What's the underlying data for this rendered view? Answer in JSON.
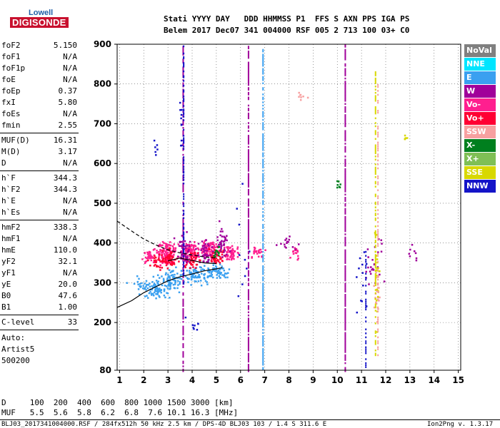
{
  "logo": {
    "top": "Lowell",
    "bottom": "DIGISONDE"
  },
  "header": {
    "line1": "Stati YYYY DAY   DDD HHMMSS P1  FFS S AXN PPS IGA PS",
    "line2": "Belem 2017 Dec07 341 004000 RSF 005 2 713 100 03+ C0"
  },
  "params_top": [
    {
      "name": "foF2",
      "value": "5.150"
    },
    {
      "name": "foF1",
      "value": "N/A"
    },
    {
      "name": "foF1p",
      "value": "N/A"
    },
    {
      "name": "foE",
      "value": "N/A"
    },
    {
      "name": "foEp",
      "value": "0.37"
    },
    {
      "name": "fxI",
      "value": "5.80"
    },
    {
      "name": "foEs",
      "value": "N/A"
    },
    {
      "name": "fmin",
      "value": "2.55"
    }
  ],
  "params_mid": [
    {
      "name": "MUF(D)",
      "value": "16.31"
    },
    {
      "name": "M(D)",
      "value": "3.17"
    },
    {
      "name": "D",
      "value": "N/A"
    }
  ],
  "params_heights": [
    {
      "name": "h`F",
      "value": "344.3"
    },
    {
      "name": "h`F2",
      "value": "344.3"
    },
    {
      "name": "h`E",
      "value": "N/A"
    },
    {
      "name": "h`Es",
      "value": "N/A"
    }
  ],
  "params_profile": [
    {
      "name": "hmF2",
      "value": "338.3"
    },
    {
      "name": "hmF1",
      "value": "N/A"
    },
    {
      "name": "hmE",
      "value": "110.0"
    },
    {
      "name": "yF2",
      "value": "32.1"
    },
    {
      "name": "yF1",
      "value": "N/A"
    },
    {
      "name": "yE",
      "value": "20.0"
    },
    {
      "name": "B0",
      "value": "47.6"
    },
    {
      "name": "B1",
      "value": "1.00"
    }
  ],
  "clevel": {
    "name": "C-level",
    "value": "33"
  },
  "auto": [
    "Auto:",
    "Artist5",
    "500200"
  ],
  "legend": [
    {
      "label": "NoVal",
      "color": "#808080"
    },
    {
      "label": "NNE",
      "color": "#00e5ff"
    },
    {
      "label": "E",
      "color": "#3aa0f0"
    },
    {
      "label": "W",
      "color": "#a0009a"
    },
    {
      "label": "Vo-",
      "color": "#ff1f8f"
    },
    {
      "label": "Vo+",
      "color": "#ff0033"
    },
    {
      "label": "SSW",
      "color": "#f7a0a0"
    },
    {
      "label": "X-",
      "color": "#007f1e"
    },
    {
      "label": "X+",
      "color": "#7fbf55"
    },
    {
      "label": "SSE",
      "color": "#d8d800"
    },
    {
      "label": "NNW",
      "color": "#1414c8"
    }
  ],
  "muf_table": {
    "d_row": "D     100  200  400  600  800 1000 1500 3000 [km]",
    "muf_row": "MUF   5.5  5.6  5.8  6.2  6.8  7.6 10.1 16.3 [MHz]"
  },
  "footer": {
    "left": "BLJ03_2017341004000.RSF / 284fx512h 50 kHz 2.5 km / DPS-4D BLJ03 103 / 1.4 S 311.6 E",
    "right": "Ion2Png v. 1.3.17"
  },
  "chart_data": {
    "type": "scatter",
    "x_ticks": [
      "1",
      "2",
      "3",
      "4",
      "5",
      "6",
      "7",
      "8",
      "9",
      "10",
      "11",
      "12",
      "13",
      "14",
      "15"
    ],
    "y_ticks": [
      "80",
      "200",
      "300",
      "400",
      "500",
      "600",
      "700",
      "800",
      "900"
    ],
    "xlim": [
      0.9,
      15.1
    ],
    "ylim": [
      80,
      900
    ],
    "x_tick_values": [
      1,
      2,
      3,
      4,
      5,
      6,
      7,
      8,
      9,
      10,
      11,
      12,
      13,
      14,
      15
    ],
    "y_tick_values": [
      80,
      200,
      300,
      400,
      500,
      600,
      700,
      800,
      900
    ],
    "grid": true,
    "series": [
      {
        "color": "#3aa0f0",
        "clusters": [
          [
            2.2,
            290,
            0.7,
            25,
            60
          ],
          [
            3.1,
            310,
            0.5,
            25,
            70
          ],
          [
            4.2,
            320,
            0.5,
            20,
            70
          ],
          [
            5.0,
            330,
            0.5,
            20,
            60
          ],
          [
            2.6,
            280,
            0.4,
            15,
            30
          ]
        ]
      },
      {
        "color": "#ff1f8f",
        "clusters": [
          [
            2.9,
            375,
            0.4,
            30,
            120
          ],
          [
            3.9,
            380,
            0.3,
            25,
            90
          ],
          [
            4.7,
            385,
            0.35,
            25,
            90
          ],
          [
            5.6,
            375,
            0.3,
            20,
            50
          ],
          [
            2.2,
            370,
            0.3,
            20,
            40
          ],
          [
            6.7,
            380,
            0.3,
            15,
            25
          ],
          [
            8.2,
            380,
            0.2,
            15,
            15
          ]
        ]
      },
      {
        "color": "#ff0033",
        "clusters": [
          [
            3.0,
            360,
            0.4,
            20,
            60
          ],
          [
            4.0,
            360,
            0.3,
            20,
            50
          ],
          [
            5.0,
            370,
            0.3,
            20,
            50
          ],
          [
            2.5,
            355,
            0.3,
            15,
            20
          ]
        ]
      },
      {
        "color": "#a0009a",
        "clusters": [
          [
            3.6,
            380,
            0.3,
            40,
            50
          ],
          [
            4.5,
            380,
            0.3,
            30,
            40
          ],
          [
            5.2,
            400,
            0.3,
            40,
            40
          ],
          [
            8.0,
            400,
            0.4,
            20,
            15
          ],
          [
            11.5,
            360,
            0.4,
            60,
            25
          ],
          [
            13.0,
            380,
            0.3,
            20,
            8
          ]
        ]
      },
      {
        "color": "#007f1e",
        "clusters": [
          [
            5.0,
            380,
            0.2,
            15,
            12
          ],
          [
            10.0,
            550,
            0.1,
            20,
            8
          ]
        ]
      },
      {
        "color": "#1414c8",
        "clusters": [
          [
            4.0,
            200,
            0.4,
            30,
            8
          ],
          [
            6.0,
            400,
            0.3,
            200,
            10
          ],
          [
            3.5,
            700,
            0.1,
            80,
            10
          ],
          [
            11.0,
            300,
            0.3,
            100,
            12
          ],
          [
            2.5,
            640,
            0.1,
            20,
            6
          ]
        ]
      },
      {
        "color": "#f7a0a0",
        "clusters": [
          [
            11.6,
            280,
            0.12,
            80,
            25
          ],
          [
            8.5,
            770,
            0.3,
            10,
            8
          ]
        ]
      },
      {
        "color": "#d8d800",
        "clusters": [
          [
            11.6,
            330,
            0.08,
            120,
            20
          ],
          [
            12.8,
            670,
            0.1,
            15,
            6
          ]
        ]
      }
    ],
    "vertical_streaks": [
      {
        "x": 3.6,
        "y0": 80,
        "y1": 900,
        "color": "#a0009a",
        "step": 4,
        "gap": 0.35
      },
      {
        "x": 3.62,
        "y0": 300,
        "y1": 900,
        "color": "#1414c8",
        "step": 3,
        "gap": 0.5
      },
      {
        "x": 6.3,
        "y0": 80,
        "y1": 900,
        "color": "#a0009a",
        "step": 4,
        "gap": 0.2
      },
      {
        "x": 6.9,
        "y0": 80,
        "y1": 890,
        "color": "#3aa0f0",
        "step": 4,
        "gap": 0.3
      },
      {
        "x": 10.3,
        "y0": 80,
        "y1": 900,
        "color": "#a0009a",
        "step": 4,
        "gap": 0.2
      },
      {
        "x": 11.55,
        "y0": 120,
        "y1": 840,
        "color": "#d8d800",
        "step": 4,
        "gap": 0.4
      },
      {
        "x": 11.65,
        "y0": 120,
        "y1": 800,
        "color": "#f7a0a0",
        "step": 5,
        "gap": 0.5
      },
      {
        "x": 11.15,
        "y0": 80,
        "y1": 380,
        "color": "#1414c8",
        "step": 5,
        "gap": 0.5
      }
    ],
    "curves": [
      {
        "style": "solid",
        "points": [
          [
            0.9,
            238
          ],
          [
            1.5,
            255
          ],
          [
            2.0,
            275
          ],
          [
            2.5,
            290
          ],
          [
            3.0,
            305
          ],
          [
            3.5,
            315
          ],
          [
            4.0,
            322
          ],
          [
            4.5,
            330
          ],
          [
            5.0,
            335
          ],
          [
            5.25,
            338
          ]
        ]
      },
      {
        "style": "solid",
        "points": [
          [
            3.0,
            355
          ],
          [
            3.5,
            362
          ],
          [
            4.0,
            356
          ],
          [
            4.5,
            350
          ],
          [
            5.0,
            348
          ]
        ]
      },
      {
        "style": "dashed",
        "points": [
          [
            0.9,
            455
          ],
          [
            1.5,
            430
          ],
          [
            2.0,
            410
          ],
          [
            2.5,
            395
          ],
          [
            3.0,
            383
          ],
          [
            3.5,
            375
          ],
          [
            4.0,
            370
          ],
          [
            4.5,
            365
          ],
          [
            5.0,
            362
          ]
        ]
      }
    ]
  }
}
